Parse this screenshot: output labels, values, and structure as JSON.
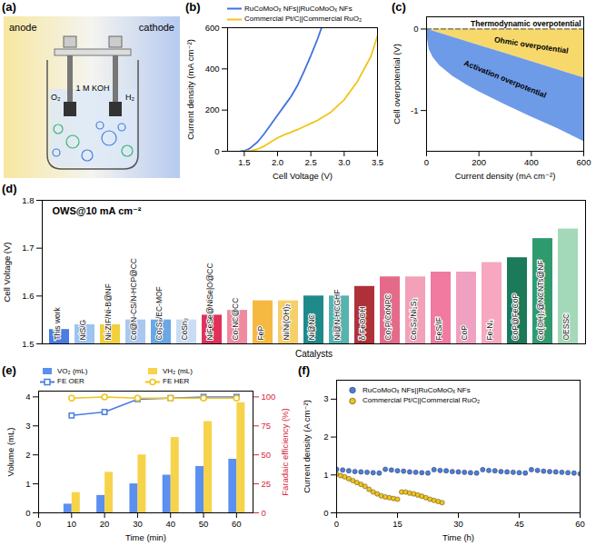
{
  "diagram": {
    "panel": "(a)",
    "anode": "anode",
    "cathode": "cathode",
    "electrolyte": "1 M KOH",
    "anode_gas": "O₂",
    "cathode_gas": "H₂"
  },
  "chart_data": [
    {
      "panel": "(b)",
      "type": "line",
      "x_label": "Cell Voltage (V)",
      "y_label": "Current density (mA cm⁻²)",
      "xlim": [
        1.25,
        3.5
      ],
      "xticks": [
        1.5,
        {
          "value": 2,
          "label": "2.0"
        },
        2.5,
        {
          "value": 3,
          "label": "3.0"
        },
        3.5
      ],
      "ylim": [
        0,
        600
      ],
      "yticks": [
        0,
        200,
        400,
        600
      ],
      "legend": "top",
      "series": [
        {
          "name": "RuCoMoOₓ NFs||RuCoMoOₓ NFs",
          "color": "#3f72e0",
          "x": [
            1.45,
            1.5,
            1.55,
            1.6,
            1.7,
            1.8,
            1.9,
            2.0,
            2.1,
            2.2,
            2.3,
            2.4,
            2.5,
            2.6,
            2.66
          ],
          "values": [
            0,
            3,
            8,
            18,
            45,
            85,
            130,
            175,
            220,
            265,
            320,
            390,
            465,
            545,
            600
          ]
        },
        {
          "name": "Commercial Pt/C||Commercial RuO₂",
          "color": "#f2c318",
          "x": [
            1.5,
            1.6,
            1.7,
            1.8,
            1.9,
            2.0,
            2.1,
            2.2,
            2.3,
            2.4,
            2.5,
            2.6,
            2.8,
            3.0,
            3.2,
            3.4,
            3.5
          ],
          "values": [
            0,
            3,
            10,
            25,
            45,
            65,
            80,
            92,
            105,
            120,
            135,
            150,
            190,
            250,
            340,
            460,
            560
          ]
        }
      ]
    },
    {
      "panel": "(c)",
      "type": "area",
      "stacked": true,
      "x_label": "Current density (mA cm⁻²)",
      "y_label": "Cell overpotential (V)",
      "xlim": [
        0,
        600
      ],
      "xticks": [
        0,
        200,
        400,
        600
      ],
      "ylim": [
        -1.5,
        0.15
      ],
      "yticks": [
        -1,
        0
      ],
      "series": [
        {
          "name": "Thermodynamic overpotential",
          "type": "line",
          "line_style": "dashed",
          "color": "#666666",
          "x": [
            0,
            600
          ],
          "values": [
            0,
            0
          ]
        },
        {
          "name": "Ohmic overpotential",
          "type": "area",
          "color": "#f7d96b",
          "x": [
            0,
            10,
            25,
            50,
            100,
            150,
            200,
            300,
            400,
            500,
            600
          ],
          "values": [
            0,
            -0.01,
            -0.025,
            -0.05,
            -0.1,
            -0.15,
            -0.2,
            -0.3,
            -0.4,
            -0.5,
            -0.6
          ]
        },
        {
          "name": "Activation overpotential",
          "type": "area",
          "color": "#6e9be8",
          "x": [
            0,
            10,
            25,
            50,
            100,
            150,
            200,
            300,
            400,
            500,
            600
          ],
          "values": [
            -0.05,
            -0.24,
            -0.325,
            -0.4,
            -0.48,
            -0.53,
            -0.57,
            -0.63,
            -0.68,
            -0.72,
            -0.78
          ]
        }
      ]
    },
    {
      "panel": "(d)",
      "type": "bar",
      "annotation": "OWS@10 mA cm⁻²",
      "x_label": "Catalysts",
      "y_label": "Cell Voltage (V)",
      "ylim": [
        1.5,
        1.8
      ],
      "yticks": [
        1.5,
        1.6,
        1.7,
        1.8
      ],
      "categories": [
        "This work",
        "NiS/G",
        "Ni-ZIF/Ni-B@NF",
        "Co@N-CS/N-HCP@CC",
        "Co₉S₈/EC-MOF",
        "CoSn₂",
        "NiFeSe@NiSe|O@CC",
        "Co-NC@CC",
        "FeP",
        "Ni/Ni(OH)₂",
        "Ni@NC",
        "Ni@N-HCGHF",
        "δ-FeOOH",
        "Co₂P/CoNPC",
        "Co₉S₈/Ni₃S₂",
        "FeS/IF",
        "CoP",
        "Fe-N₄",
        "CoP@FeCoP",
        "Co(OH)₂@NCNTs@NF",
        "OESSC"
      ],
      "values": [
        1.53,
        1.54,
        1.54,
        1.55,
        1.55,
        1.55,
        1.56,
        1.57,
        1.59,
        1.59,
        1.6,
        1.6,
        1.62,
        1.64,
        1.64,
        1.65,
        1.65,
        1.67,
        1.68,
        1.72,
        1.74
      ],
      "colors": [
        "#4a7de0",
        "#9cc3f2",
        "#f2cf3c",
        "#a8c8f0",
        "#6aa7e6",
        "#c9dcf5",
        "#e0315a",
        "#f08aa0",
        "#f5b942",
        "#f7cf6a",
        "#1f8a8a",
        "#57b3b0",
        "#b0303a",
        "#e56a8a",
        "#f2a1b8",
        "#f07aa0",
        "#f0a0c0",
        "#f7a8c0",
        "#1a7a5a",
        "#2f9a6e",
        "#a3d9b8"
      ]
    },
    {
      "panel": "(e)",
      "type": "bar",
      "x_label": "Time (min)",
      "y_label": "Volume (mL)",
      "y2_label": "Faradaic efficiency (%)",
      "xlim": [
        0,
        65
      ],
      "xticks": [
        0,
        10,
        20,
        30,
        40,
        50,
        60
      ],
      "ylim": [
        0,
        4.2
      ],
      "yticks": [
        0,
        1,
        2,
        3,
        4
      ],
      "y2lim": [
        0,
        105
      ],
      "y2ticks": [
        0,
        25,
        50,
        75,
        100
      ],
      "legend": "top",
      "x": [
        10,
        20,
        30,
        40,
        50,
        60
      ],
      "series": [
        {
          "name": "VO₂ (mL)",
          "type": "bar",
          "color": "#5b8ff0",
          "values": [
            0.3,
            0.6,
            1.0,
            1.3,
            1.6,
            1.85
          ]
        },
        {
          "name": "VH₂ (mL)",
          "type": "bar",
          "color": "#f7d34a",
          "values": [
            0.7,
            1.4,
            2.0,
            2.6,
            3.15,
            3.8
          ]
        },
        {
          "name": "FE OER",
          "type": "line",
          "axis": "y2",
          "marker": "square",
          "color": "#4a7de0",
          "values": [
            84,
            87,
            98,
            99,
            100,
            100
          ]
        },
        {
          "name": "FE HER",
          "type": "line",
          "axis": "y2",
          "marker": "circle",
          "color": "#f2c318",
          "values": [
            99,
            100,
            99,
            99,
            99,
            99
          ]
        }
      ]
    },
    {
      "panel": "(f)",
      "type": "scatter",
      "x_label": "Time (h)",
      "y_label": "Current density (A cm⁻²)",
      "xlim": [
        0,
        60
      ],
      "xticks": [
        0,
        15,
        30,
        45,
        60
      ],
      "ylim": [
        0,
        3.5
      ],
      "yticks": [
        0,
        1,
        2,
        3
      ],
      "legend": "top",
      "series": [
        {
          "name": "RuCoMoOₓ NFs||RuCoMoOₓ NFs",
          "marker": "circle",
          "color": "#4a7de0",
          "x": [
            0,
            1.5,
            3,
            4.5,
            6,
            7.5,
            9,
            10.5,
            12,
            13.5,
            15,
            16.5,
            18,
            19.5,
            21,
            22.5,
            24,
            25.5,
            27,
            28.5,
            30,
            31.5,
            33,
            34.5,
            36,
            37.5,
            39,
            40.5,
            42,
            43.5,
            45,
            46.5,
            48,
            49.5,
            51,
            52.5,
            54,
            55.5,
            57,
            58.5,
            60
          ],
          "values": [
            1.15,
            1.13,
            1.11,
            1.09,
            1.08,
            1.07,
            1.06,
            1.05,
            1.15,
            1.13,
            1.11,
            1.1,
            1.08,
            1.07,
            1.06,
            1.05,
            1.14,
            1.12,
            1.11,
            1.09,
            1.08,
            1.07,
            1.06,
            1.05,
            1.14,
            1.12,
            1.11,
            1.09,
            1.08,
            1.07,
            1.06,
            1.05,
            1.14,
            1.12,
            1.1,
            1.09,
            1.08,
            1.07,
            1.06,
            1.05,
            1.03
          ]
        },
        {
          "name": "Commercial Pt/C||Commercial RuO₂",
          "marker": "circle",
          "color": "#f2c318",
          "x": [
            0,
            1,
            2,
            3,
            4,
            5,
            6,
            7,
            8,
            9,
            10,
            11,
            12,
            13,
            14,
            15,
            16,
            17,
            18,
            19,
            20,
            21,
            22,
            23,
            24,
            25,
            26
          ],
          "values": [
            1.02,
            0.98,
            0.95,
            0.9,
            0.85,
            0.8,
            0.75,
            0.7,
            0.62,
            0.55,
            0.5,
            0.45,
            0.42,
            0.4,
            0.38,
            0.36,
            0.55,
            0.55,
            0.52,
            0.5,
            0.47,
            0.44,
            0.4,
            0.36,
            0.33,
            0.3,
            0.27
          ]
        }
      ]
    }
  ]
}
